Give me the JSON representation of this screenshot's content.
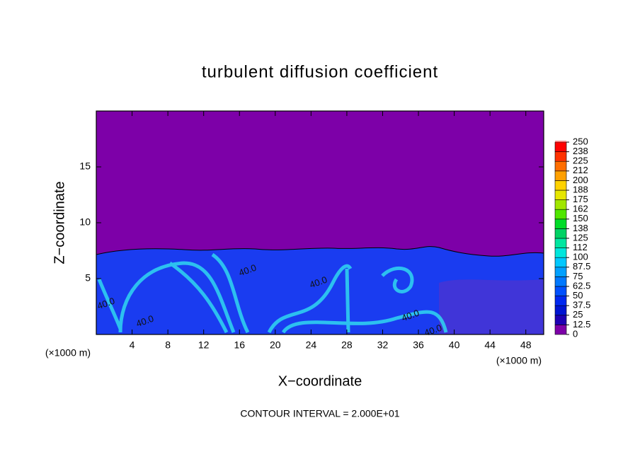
{
  "chart_data": {
    "type": "heatmap",
    "title": "turbulent diffusion coefficient",
    "xlabel": "X−coordinate",
    "ylabel": "Z−coordinate",
    "x_unit_labels": [
      "(×1000 m)",
      "(×1000 m)"
    ],
    "footer": "CONTOUR INTERVAL = 2.000E+01",
    "xlim": [
      0,
      50
    ],
    "xticks": [
      4,
      8,
      12,
      16,
      20,
      24,
      28,
      32,
      36,
      40,
      44,
      48
    ],
    "ylim": [
      0,
      20
    ],
    "yticks": [
      5,
      10,
      15
    ],
    "contour_labels": [
      "40.0",
      "40.0",
      "40.0",
      "40.0",
      "40.0",
      "40.0"
    ],
    "colorbar": {
      "ticks": [
        0,
        12.5,
        25,
        37.5,
        50,
        62.5,
        75,
        87.5,
        100,
        112,
        125,
        138,
        150,
        162,
        175,
        188,
        200,
        212,
        225,
        238,
        250
      ],
      "colors": [
        "#7d00a8",
        "#1e00b4",
        "#0014d2",
        "#0028f0",
        "#0050ff",
        "#0078ff",
        "#00a0ff",
        "#00c8ff",
        "#00e6dc",
        "#00e6a0",
        "#00d264",
        "#00dc28",
        "#50e600",
        "#a0e600",
        "#e6e600",
        "#ffd200",
        "#ffa000",
        "#ff6e00",
        "#ff3200",
        "#ff0000"
      ],
      "top_color": "#f08080"
    }
  }
}
